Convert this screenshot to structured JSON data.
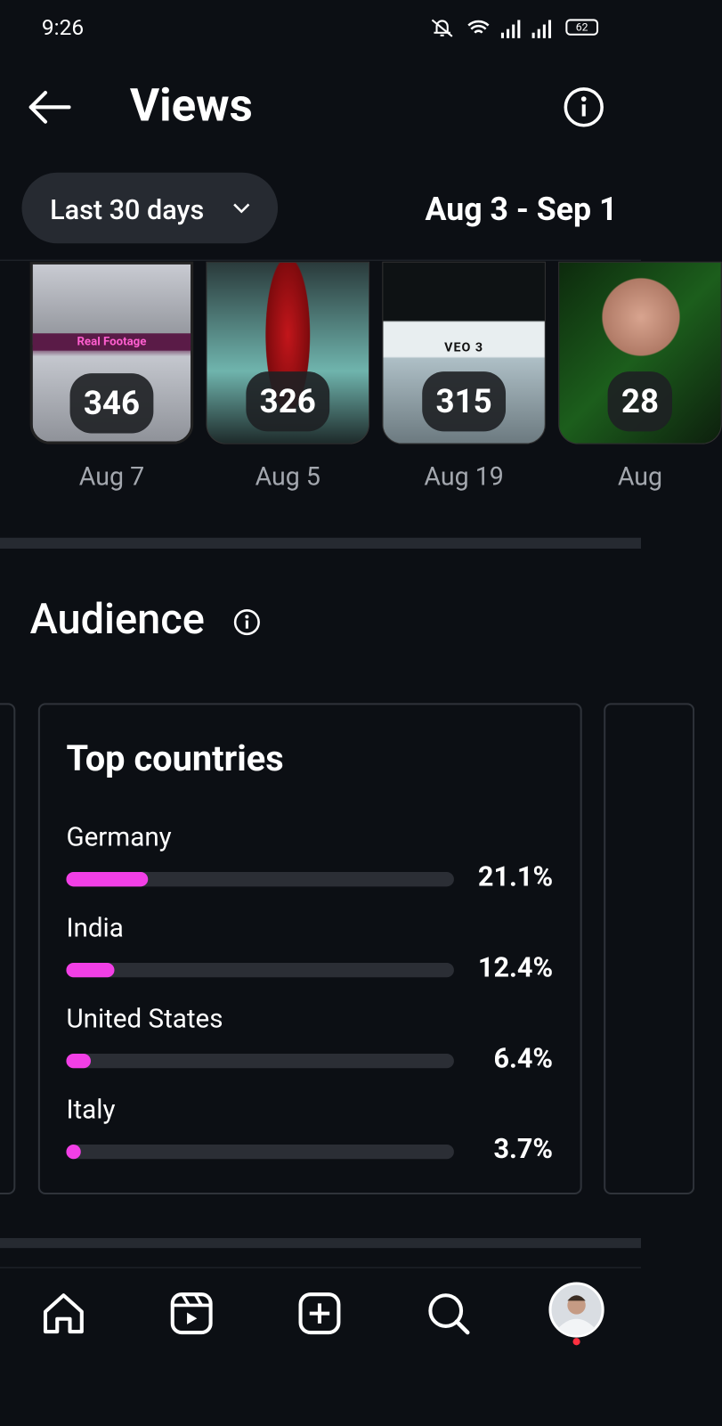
{
  "status_bar": {
    "time": "9:26",
    "battery": "62"
  },
  "header": {
    "title": "Views"
  },
  "filter": {
    "period": "Last 30 days",
    "date_range": "Aug 3 - Sep 1"
  },
  "top_content": [
    {
      "views": 346,
      "date": "Aug 7",
      "overlay_text": "Real Footage"
    },
    {
      "views": 326,
      "date": "Aug 5"
    },
    {
      "views": 315,
      "date": "Aug 19",
      "overlay_text": "VEO 3"
    },
    {
      "views": "28",
      "date": "Aug"
    }
  ],
  "audience": {
    "title": "Audience",
    "top_countries": {
      "title": "Top countries",
      "rows": [
        {
          "country": "Germany",
          "percent": 21.1,
          "label": "21.1%"
        },
        {
          "country": "India",
          "percent": 12.4,
          "label": "12.4%"
        },
        {
          "country": "United States",
          "percent": 6.4,
          "label": "6.4%"
        },
        {
          "country": "Italy",
          "percent": 3.7,
          "label": "3.7%"
        }
      ]
    }
  }
}
